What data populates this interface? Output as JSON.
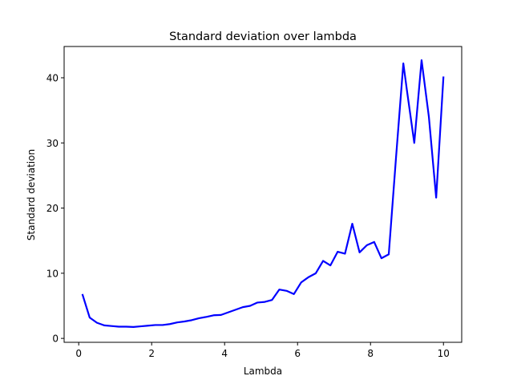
{
  "chart_data": {
    "type": "line",
    "title": "Standard deviation over lambda",
    "xlabel": "Lambda",
    "ylabel": "Standard deviation",
    "xlim": [
      -0.4,
      10.5
    ],
    "ylim": [
      -0.6,
      44.8
    ],
    "xticks": [
      0,
      2,
      4,
      6,
      8,
      10
    ],
    "yticks": [
      0,
      10,
      20,
      30,
      40
    ],
    "grid": false,
    "series": [
      {
        "color": "#0000ff",
        "x": [
          0.1,
          0.3,
          0.5,
          0.7,
          0.9,
          1.1,
          1.3,
          1.5,
          1.7,
          1.9,
          2.1,
          2.3,
          2.5,
          2.7,
          2.9,
          3.1,
          3.3,
          3.5,
          3.7,
          3.9,
          4.1,
          4.3,
          4.5,
          4.7,
          4.9,
          5.1,
          5.3,
          5.5,
          5.7,
          5.9,
          6.1,
          6.3,
          6.5,
          6.7,
          6.9,
          7.1,
          7.3,
          7.5,
          7.7,
          7.9,
          8.1,
          8.3,
          8.5,
          8.7,
          8.9,
          9.0,
          9.2,
          9.4,
          9.6,
          9.8,
          10.0
        ],
        "y": [
          6.8,
          3.2,
          2.4,
          2.0,
          1.9,
          1.8,
          1.8,
          1.75,
          1.85,
          1.95,
          2.05,
          2.05,
          2.2,
          2.45,
          2.6,
          2.8,
          3.1,
          3.3,
          3.55,
          3.6,
          4.0,
          4.4,
          4.8,
          5.0,
          5.5,
          5.6,
          5.9,
          7.5,
          7.3,
          6.8,
          8.6,
          9.4,
          10.0,
          11.9,
          11.2,
          13.3,
          13.0,
          17.6,
          13.2,
          14.3,
          14.8,
          12.3,
          12.9,
          27.8,
          42.2,
          38.0,
          30.0,
          42.7,
          34.0,
          21.6,
          40.2
        ]
      }
    ]
  }
}
